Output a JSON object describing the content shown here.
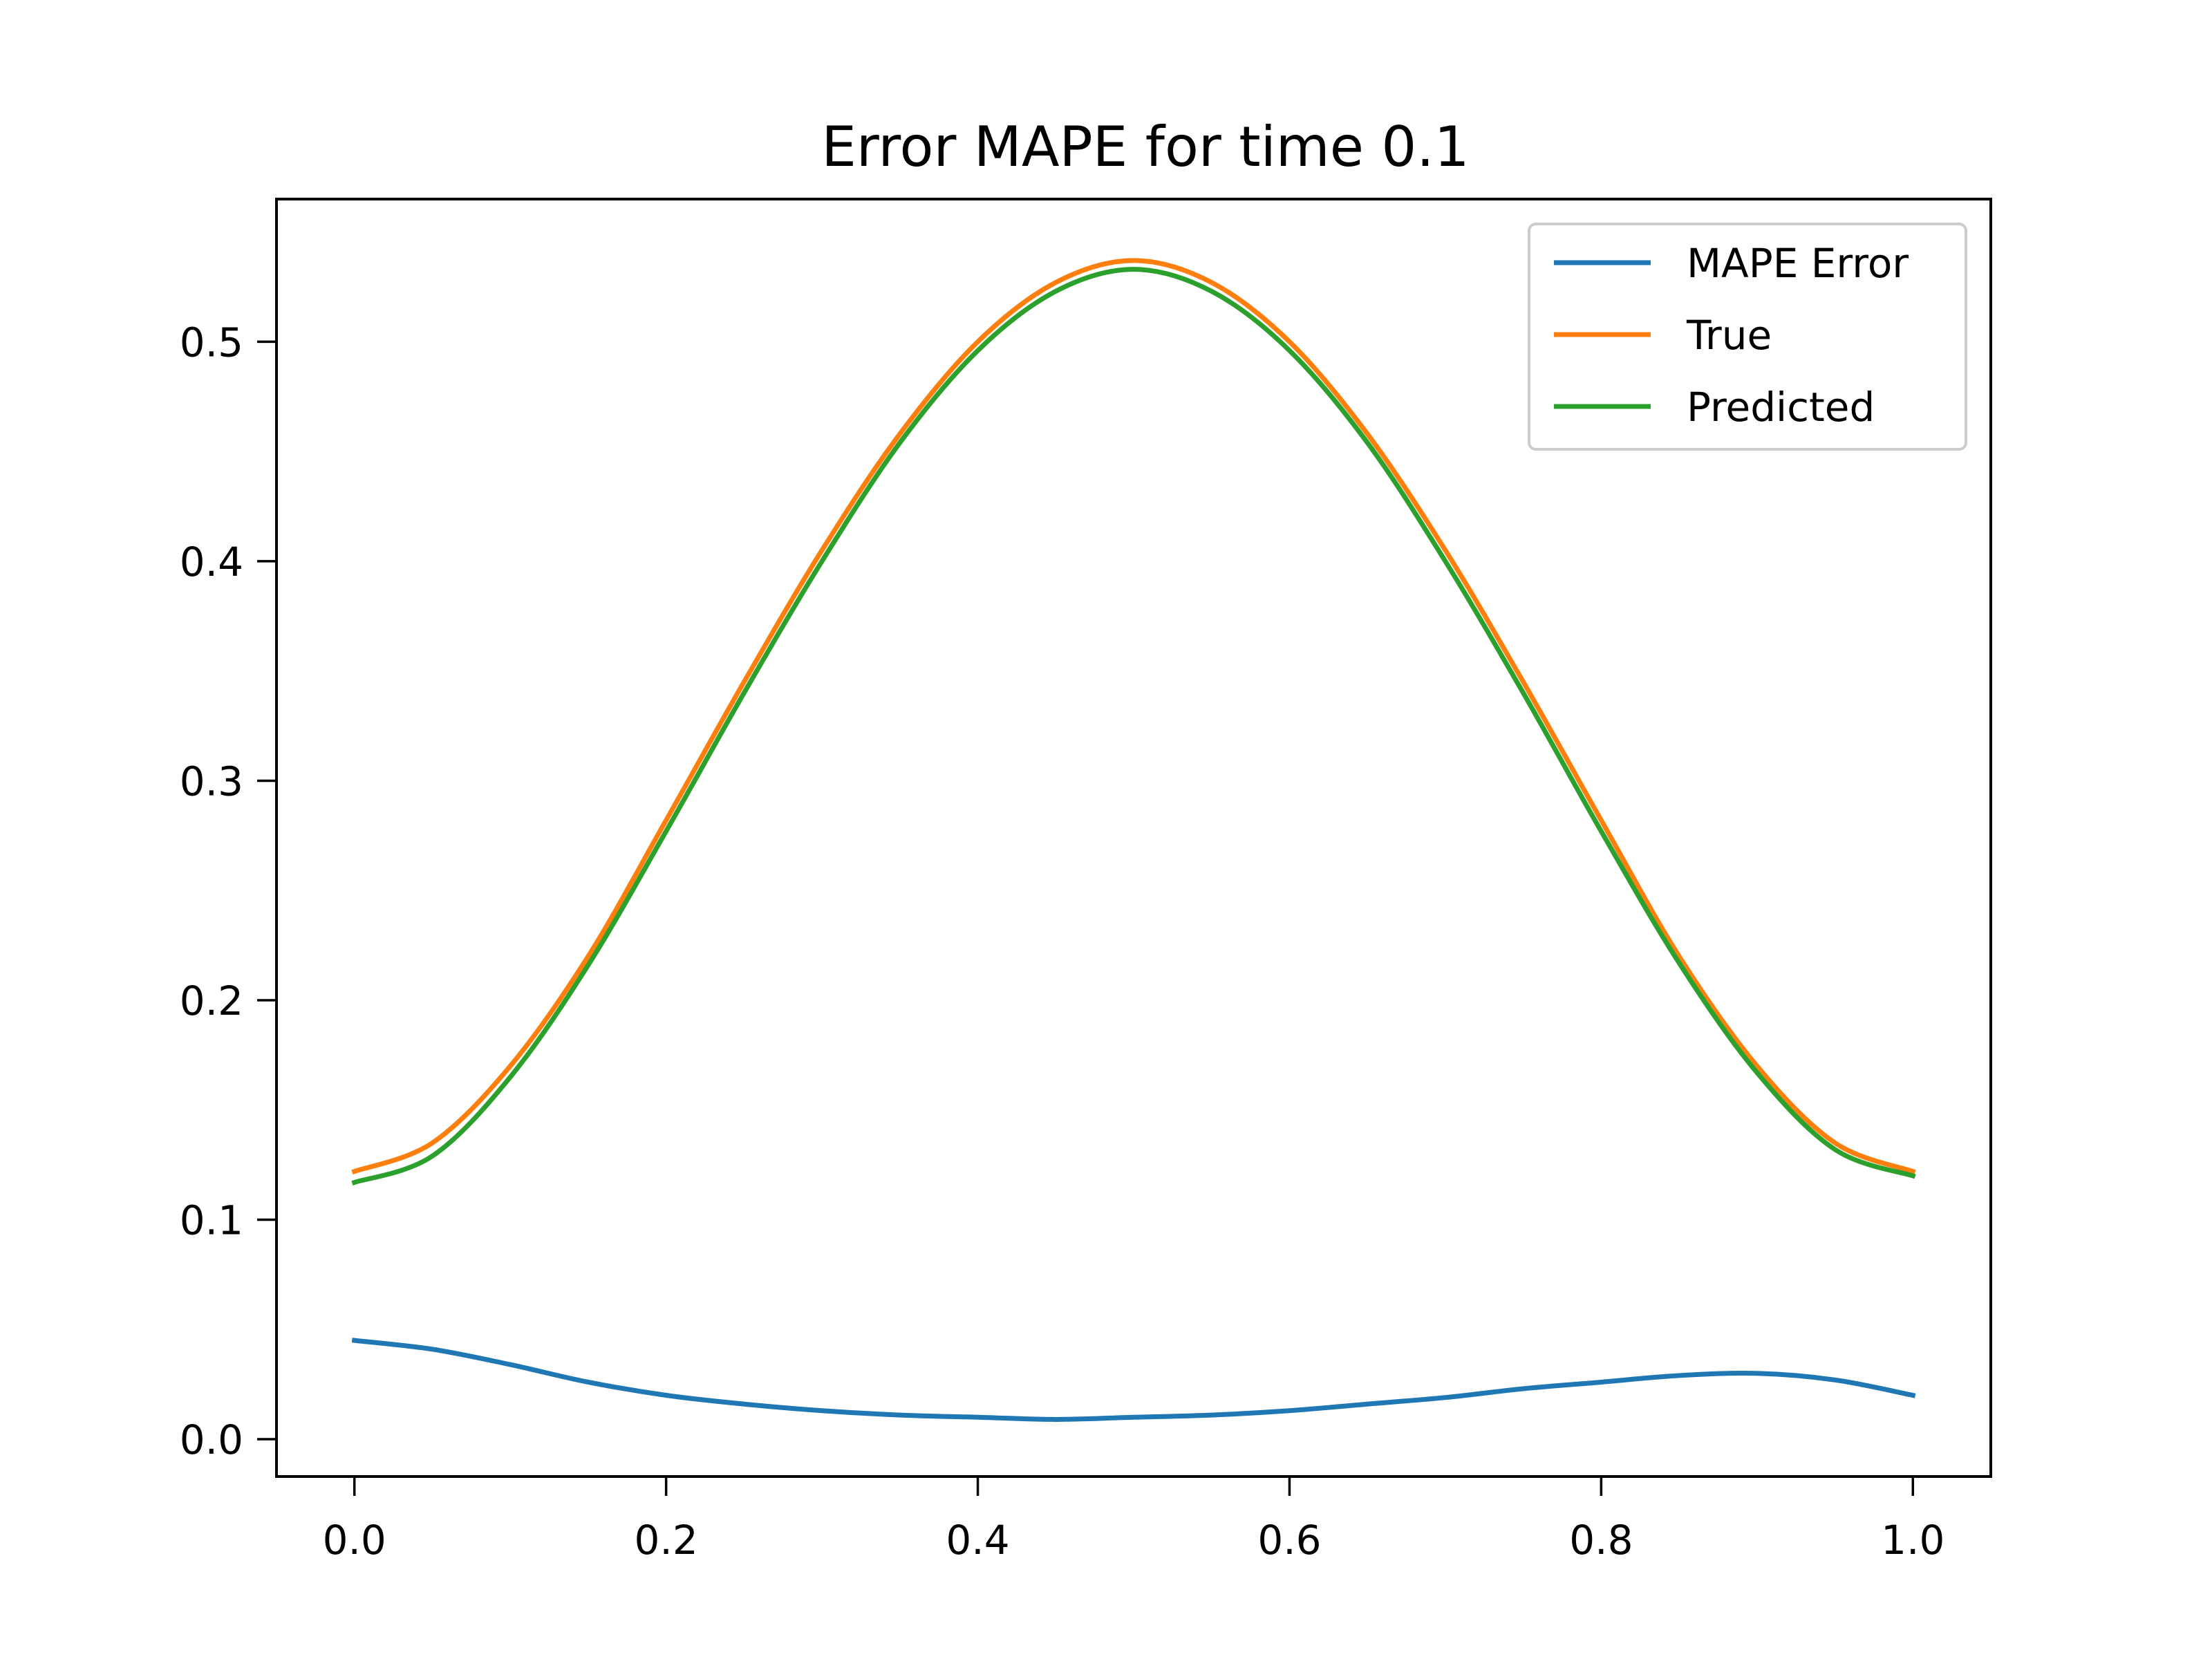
{
  "chart_data": {
    "type": "line",
    "title": "Error MAPE for time 0.1",
    "xlabel": "",
    "ylabel": "",
    "xlim": [
      -0.05,
      1.05
    ],
    "ylim": [
      -0.017,
      0.565
    ],
    "xticks": [
      0.0,
      0.2,
      0.4,
      0.6,
      0.8,
      1.0
    ],
    "xtick_labels": [
      "0.0",
      "0.2",
      "0.4",
      "0.6",
      "0.8",
      "1.0"
    ],
    "yticks": [
      0.0,
      0.1,
      0.2,
      0.3,
      0.4,
      0.5
    ],
    "ytick_labels": [
      "0.0",
      "0.1",
      "0.2",
      "0.3",
      "0.4",
      "0.5"
    ],
    "grid": false,
    "legend_position": "top-right",
    "x": [
      0.0,
      0.05,
      0.1,
      0.15,
      0.2,
      0.25,
      0.3,
      0.35,
      0.4,
      0.45,
      0.5,
      0.55,
      0.6,
      0.65,
      0.7,
      0.75,
      0.8,
      0.85,
      0.9,
      0.95,
      1.0
    ],
    "series": [
      {
        "name": "MAPE Error",
        "color": "#1f77b4",
        "values": [
          0.045,
          0.041,
          0.034,
          0.026,
          0.02,
          0.016,
          0.013,
          0.011,
          0.01,
          0.009,
          0.01,
          0.011,
          0.013,
          0.016,
          0.019,
          0.023,
          0.026,
          0.029,
          0.03,
          0.027,
          0.02
        ]
      },
      {
        "name": "True",
        "color": "#ff7f0e",
        "values": [
          0.122,
          0.135,
          0.17,
          0.22,
          0.282,
          0.345,
          0.405,
          0.458,
          0.5,
          0.527,
          0.537,
          0.527,
          0.5,
          0.458,
          0.405,
          0.345,
          0.282,
          0.22,
          0.17,
          0.135,
          0.122
        ]
      },
      {
        "name": "Predicted",
        "color": "#2ca02c",
        "values": [
          0.117,
          0.129,
          0.165,
          0.216,
          0.277,
          0.34,
          0.4,
          0.454,
          0.496,
          0.523,
          0.533,
          0.523,
          0.496,
          0.454,
          0.4,
          0.34,
          0.277,
          0.217,
          0.167,
          0.132,
          0.12
        ]
      }
    ]
  }
}
